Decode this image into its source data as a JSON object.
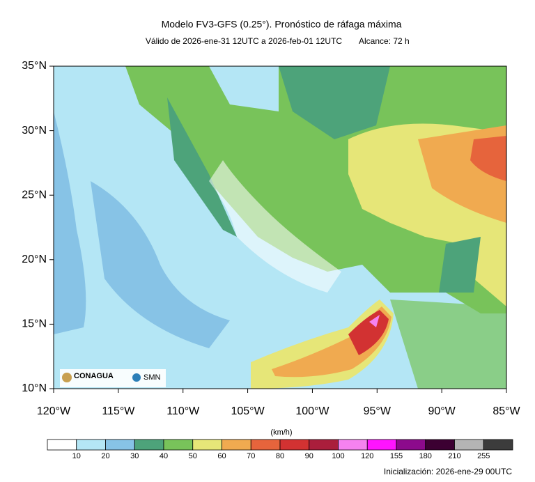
{
  "header": {
    "title": "Modelo FV3-GFS (0.25°). Pronóstico de ráfaga máxima",
    "subtitle": "Válido de 2026-ene-31 12UTC a 2026-feb-01 12UTC",
    "range": "Alcance: 72 h"
  },
  "map": {
    "lat_labels": [
      "35°N",
      "30°N",
      "25°N",
      "20°N",
      "15°N",
      "10°N"
    ],
    "lon_labels": [
      "120°W",
      "115°W",
      "110°W",
      "105°W",
      "100°W",
      "95°W",
      "90°W",
      "85°W"
    ],
    "logos": [
      "CONAGUA",
      "SMN"
    ]
  },
  "colorbar": {
    "unit": "(km/h)",
    "levels": [
      10,
      20,
      30,
      40,
      50,
      60,
      70,
      80,
      90,
      100,
      120,
      155,
      180,
      210,
      255
    ],
    "colors": [
      "#ffffff",
      "#b4e6f5",
      "#87c3e6",
      "#4da37a",
      "#78c35a",
      "#e6e678",
      "#f0aa50",
      "#e6643c",
      "#d23232",
      "#aa1e3c",
      "#f582f0",
      "#ff14ff",
      "#8c0a8c",
      "#3c0032",
      "#b4b4b4",
      "#3c3c3c"
    ]
  },
  "footer": {
    "init": "Inicialización: 2026-ene-29 00UTC"
  }
}
